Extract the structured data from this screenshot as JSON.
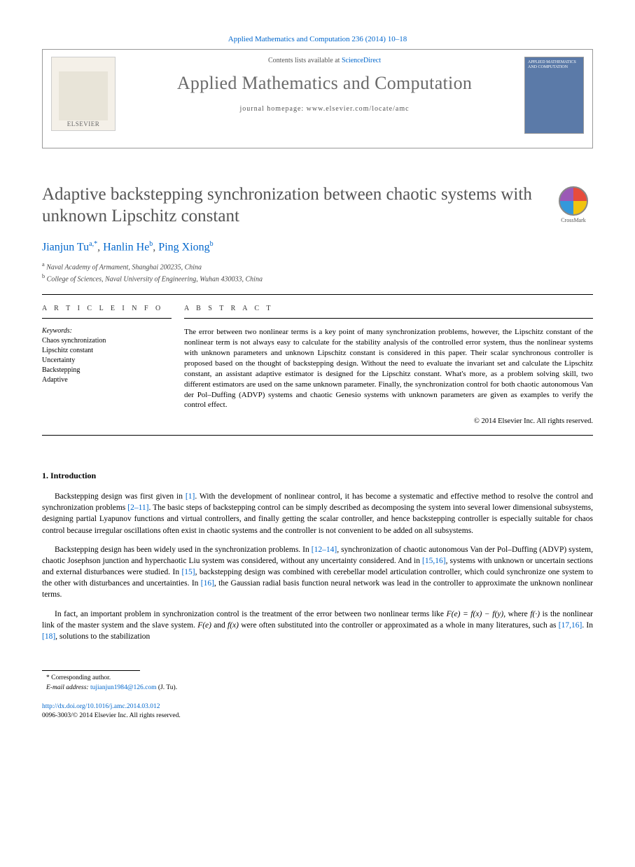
{
  "header": {
    "citation": "Applied Mathematics and Computation 236 (2014) 10–18",
    "contents_prefix": "Contents lists available at ",
    "contents_link": "ScienceDirect",
    "journal_name": "Applied Mathematics and Computation",
    "homepage_prefix": "journal homepage: ",
    "homepage_url": "www.elsevier.com/locate/amc",
    "elsevier": "ELSEVIER",
    "cover_text": "APPLIED MATHEMATICS AND COMPUTATION",
    "crossmark": "CrossMark"
  },
  "article": {
    "title": "Adaptive backstepping synchronization between chaotic systems with unknown Lipschitz constant",
    "authors_html": "Jianjun Tu",
    "author1": "Jianjun Tu",
    "author1_sup": "a,",
    "author1_star": "*",
    "author2": "Hanlin He",
    "author2_sup": "b",
    "author3": "Ping Xiong",
    "author3_sup": "b",
    "aff_a": "Naval Academy of Armament, Shanghai 200235, China",
    "aff_b": "College of Sciences, Naval University of Engineering, Wuhan 430033, China"
  },
  "info": {
    "heading": "A R T I C L E   I N F O",
    "keywords_label": "Keywords:",
    "keywords": [
      "Chaos synchronization",
      "Lipschitz constant",
      "Uncertainty",
      "Backstepping",
      "Adaptive"
    ]
  },
  "abstract": {
    "heading": "A B S T R A C T",
    "text": "The error between two nonlinear terms is a key point of many synchronization problems, however, the Lipschitz constant of the nonlinear term is not always easy to calculate for the stability analysis of the controlled error system, thus the nonlinear systems with unknown parameters and unknown Lipschitz constant is considered in this paper. Their scalar synchronous controller is proposed based on the thought of backstepping design. Without the need to evaluate the invariant set and calculate the Lipschitz constant, an assistant adaptive estimator is designed for the Lipschitz constant. What's more, as a problem solving skill, two different estimators are used on the same unknown parameter. Finally, the synchronization control for both chaotic autonomous Van der Pol–Duffing (ADVP) systems and chaotic Genesio systems with unknown parameters are given as examples to verify the control effect.",
    "copyright": "© 2014 Elsevier Inc. All rights reserved."
  },
  "body": {
    "section1_heading": "1. Introduction",
    "para1_a": "Backstepping design was first given in ",
    "para1_ref1": "[1]",
    "para1_b": ". With the development of nonlinear control, it has become a systematic and effective method to resolve the control and synchronization problems ",
    "para1_ref2": "[2–11]",
    "para1_c": ". The basic steps of backstepping control can be simply described as decomposing the system into several lower dimensional subsystems, designing partial Lyapunov functions and virtual controllers, and finally getting the scalar controller, and hence backstepping controller is especially suitable for chaos control because irregular oscillations often exist in chaotic systems and the controller is not convenient to be added on all subsystems.",
    "para2_a": "Backstepping design has been widely used in the synchronization problems. In ",
    "para2_ref1": "[12–14]",
    "para2_b": ", synchronization of chaotic autonomous Van der Pol–Duffing (ADVP) system, chaotic Josephson junction and hyperchaotic Liu system was considered, without any uncertainty considered. And in ",
    "para2_ref2": "[15,16]",
    "para2_c": ", systems with unknown or uncertain sections and external disturbances were studied. In ",
    "para2_ref3": "[15]",
    "para2_d": ", backstepping design was combined with cerebellar model articulation controller, which could synchronize one system to the other with disturbances and uncertainties. In ",
    "para2_ref4": "[16]",
    "para2_e": ", the Gaussian radial basis function neural network was lead in the controller to approximate the unknown nonlinear terms.",
    "para3_a": "In fact, an important problem in synchronization control is the treatment of the error between two nonlinear terms like ",
    "para3_eq": "F(e) = f(x) − f(y)",
    "para3_b": ", where ",
    "para3_fx": "f(·)",
    "para3_c": " is the nonlinear link of the master system and the slave system. ",
    "para3_Fe": "F(e)",
    "para3_d": " and ",
    "para3_fx2": "f(x)",
    "para3_e": " were often substituted into the controller or approximated as a whole in many literatures, such as ",
    "para3_ref1": "[17,16]",
    "para3_f": ". In ",
    "para3_ref2": "[18]",
    "para3_g": ", solutions to the stabilization"
  },
  "footnotes": {
    "corresponding": "* Corresponding author.",
    "email_label": "E-mail address: ",
    "email": "tujianjun1984@126.com",
    "email_who": " (J. Tu)."
  },
  "footer": {
    "doi": "http://dx.doi.org/10.1016/j.amc.2014.03.012",
    "issn_copyright": "0096-3003/© 2014 Elsevier Inc. All rights reserved."
  },
  "colors": {
    "link": "#0066cc",
    "text": "#333333",
    "heading_gray": "#555555"
  }
}
